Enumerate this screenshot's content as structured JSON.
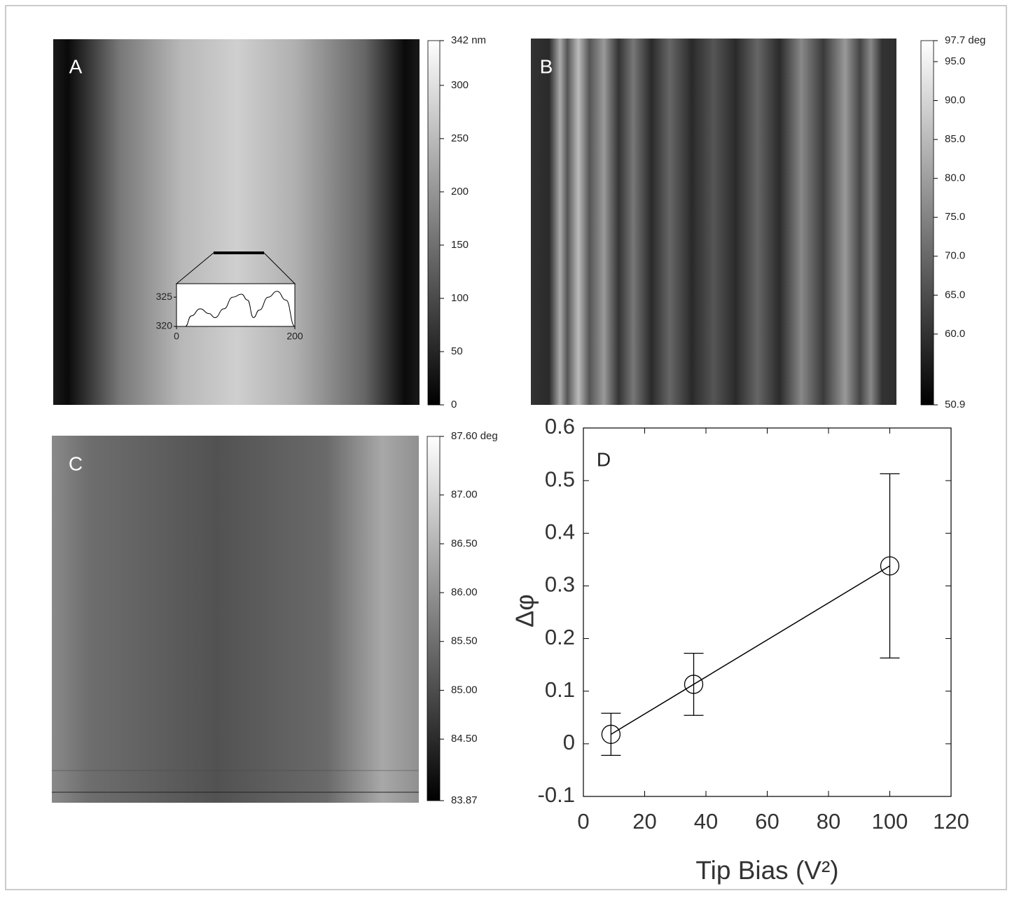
{
  "chart_data": [
    {
      "type": "image",
      "label": "A",
      "colorbar": {
        "lim": [
          0,
          342
        ],
        "ticks": [
          0,
          50,
          100,
          150,
          200,
          250,
          300,
          {
            "value": 342,
            "label": "342 nm"
          }
        ]
      },
      "inset": {
        "type": "line",
        "x": [
          15,
          25,
          40,
          55,
          65,
          80,
          95,
          110,
          120,
          130,
          140,
          155,
          170,
          185,
          200
        ],
        "values": [
          320,
          321.8,
          323,
          322.2,
          321.5,
          323,
          325,
          325.5,
          324.5,
          321.5,
          322.8,
          325,
          326,
          324.5,
          320
        ],
        "xlim": [
          0,
          200
        ],
        "ylim": [
          320,
          327.3
        ],
        "xticks": [
          0,
          200
        ],
        "yticks": [
          320,
          325
        ]
      }
    },
    {
      "type": "image",
      "label": "B",
      "colorbar": {
        "lim": [
          50.9,
          97.7
        ],
        "ticks": [
          50.9,
          {
            "value": 60,
            "label": "60.0"
          },
          {
            "value": 65,
            "label": "65.0"
          },
          {
            "value": 70,
            "label": "70.0"
          },
          {
            "value": 75,
            "label": "75.0"
          },
          {
            "value": 80,
            "label": "80.0"
          },
          {
            "value": 85,
            "label": "85.0"
          },
          {
            "value": 90,
            "label": "90.0"
          },
          {
            "value": 95,
            "label": "95.0"
          },
          {
            "value": 97.7,
            "label": "97.7 deg"
          }
        ]
      }
    },
    {
      "type": "image",
      "label": "C",
      "colorbar": {
        "lim": [
          83.87,
          87.6
        ],
        "ticks": [
          83.87,
          {
            "value": 84.5,
            "label": "84.50"
          },
          {
            "value": 85,
            "label": "85.00"
          },
          {
            "value": 85.5,
            "label": "85.50"
          },
          {
            "value": 86,
            "label": "86.00"
          },
          {
            "value": 86.5,
            "label": "86.50"
          },
          {
            "value": 87,
            "label": "87.00"
          },
          {
            "value": 87.6,
            "label": "87.60 deg"
          }
        ]
      }
    },
    {
      "type": "scatter",
      "label": "D",
      "x": [
        9,
        36,
        100
      ],
      "values": [
        0.018,
        0.113,
        0.338
      ],
      "errors": [
        0.04,
        0.059,
        0.175
      ],
      "xlim": [
        0,
        120
      ],
      "ylim": [
        -0.1,
        0.6
      ],
      "xticks": [
        0,
        20,
        40,
        60,
        80,
        100,
        120
      ],
      "yticks": [
        -0.1,
        0,
        0.1,
        0.2,
        0.3,
        0.4,
        0.5,
        0.6
      ],
      "xlabel": "Tip Bias (V²)",
      "ylabel": "Δφ"
    }
  ]
}
